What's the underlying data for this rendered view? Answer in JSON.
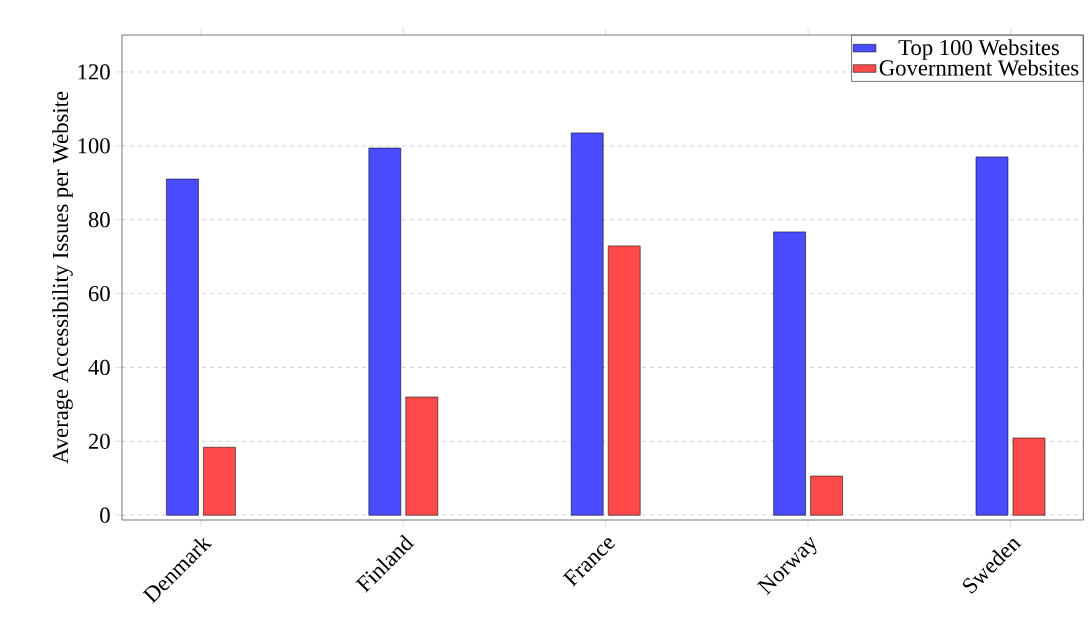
{
  "chart_data": {
    "type": "bar",
    "ylabel": "Average Accessibility Issues per Website",
    "categories": [
      "Denmark",
      "Finland",
      "France",
      "Norway",
      "Sweden"
    ],
    "series": [
      {
        "name": "Top 100 Websites",
        "color": "#4b4bff",
        "values": [
          91.0,
          99.4,
          103.5,
          76.7,
          97.0
        ]
      },
      {
        "name": "Government Websites",
        "color": "#ff4b4b",
        "values": [
          18.4,
          32.0,
          72.9,
          10.6,
          20.9
        ]
      }
    ],
    "ylim": [
      -1.3,
      130
    ],
    "yticks": [
      0,
      20,
      40,
      60,
      80,
      100,
      120
    ],
    "grid": "y",
    "legend": "top right"
  }
}
